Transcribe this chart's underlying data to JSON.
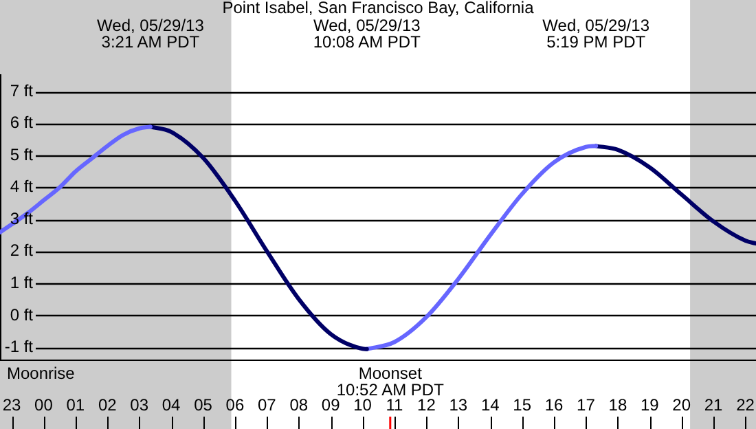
{
  "chart_data": {
    "type": "line",
    "title": "Point Isabel, San Francisco Bay, California",
    "series": [
      {
        "color": "#6666ff",
        "x": [
          "--05-28T22:38",
          "--05-28T23:30",
          "--05-29T00:00",
          "--05-29T00:30",
          "--05-29T01:00",
          "--05-29T01:30",
          "--05-29T02:00",
          "--05-29T02:30",
          "--05-29T03:00",
          "--05-29T03:21"
        ],
        "values": [
          2.6,
          3.2,
          3.6,
          4.0,
          4.5,
          4.9,
          5.3,
          5.65,
          5.85,
          5.9
        ]
      },
      {
        "color": "#000066",
        "x": [
          "--05-29T03:21",
          "--05-29T04:00",
          "--05-29T05:00",
          "--05-29T06:00",
          "--05-29T07:00",
          "--05-29T08:00",
          "--05-29T09:00",
          "--05-29T10:00",
          "--05-29T10:08"
        ],
        "values": [
          5.9,
          5.74,
          4.93,
          3.59,
          2.01,
          0.51,
          -0.58,
          -1.04,
          -1.05
        ]
      },
      {
        "color": "#6666ff",
        "x": [
          "--05-29T10:08",
          "--05-29T11:00",
          "--05-29T12:00",
          "--05-29T13:00",
          "--05-29T14:00",
          "--05-29T15:00",
          "--05-29T16:00",
          "--05-29T17:00",
          "--05-29T17:19"
        ],
        "values": [
          -1.05,
          -0.83,
          -0.05,
          1.14,
          2.51,
          3.8,
          4.79,
          5.27,
          5.3
        ]
      },
      {
        "color": "#000066",
        "x": [
          "--05-29T17:19",
          "--05-29T18:00",
          "--05-29T19:00",
          "--05-29T20:00",
          "--05-29T21:00",
          "--05-29T22:00",
          "--05-29T22:20"
        ],
        "values": [
          5.3,
          5.18,
          4.63,
          3.78,
          2.94,
          2.34,
          2.25
        ]
      }
    ],
    "xlim": [
      "--05-28T22:38",
      "--05-29T22:20"
    ],
    "xticks": [
      {
        "value": "--05-28T23:00",
        "label": "23"
      },
      {
        "value": "--05-29T00:00",
        "label": "00"
      },
      {
        "value": "--05-29T01:00",
        "label": "01"
      },
      {
        "value": "--05-29T02:00",
        "label": "02"
      },
      {
        "value": "--05-29T03:00",
        "label": "03"
      },
      {
        "value": "--05-29T04:00",
        "label": "04"
      },
      {
        "value": "--05-29T05:00",
        "label": "05"
      },
      {
        "value": "--05-29T06:00",
        "label": "06"
      },
      {
        "value": "--05-29T07:00",
        "label": "07"
      },
      {
        "value": "--05-29T08:00",
        "label": "08"
      },
      {
        "value": "--05-29T09:00",
        "label": "09"
      },
      {
        "value": "--05-29T10:00",
        "label": "10"
      },
      {
        "value": "--05-29T11:00",
        "label": "11"
      },
      {
        "value": "--05-29T12:00",
        "label": "12"
      },
      {
        "value": "--05-29T13:00",
        "label": "13"
      },
      {
        "value": "--05-29T14:00",
        "label": "14"
      },
      {
        "value": "--05-29T15:00",
        "label": "15"
      },
      {
        "value": "--05-29T16:00",
        "label": "16"
      },
      {
        "value": "--05-29T17:00",
        "label": "17"
      },
      {
        "value": "--05-29T18:00",
        "label": "18"
      },
      {
        "value": "--05-29T19:00",
        "label": "19"
      },
      {
        "value": "--05-29T20:00",
        "label": "20"
      },
      {
        "value": "--05-29T21:00",
        "label": "21"
      },
      {
        "value": "--05-29T22:00",
        "label": "22"
      }
    ],
    "ylim": [
      -1.4,
      7.5
    ],
    "yticks": [
      {
        "value": -1,
        "label": "-1 ft"
      },
      {
        "value": 0,
        "label": "0 ft"
      },
      {
        "value": 1,
        "label": "1 ft"
      },
      {
        "value": 2,
        "label": "2 ft"
      },
      {
        "value": 3,
        "label": "3 ft"
      },
      {
        "value": 4,
        "label": "4 ft"
      },
      {
        "value": 5,
        "label": "5 ft"
      },
      {
        "value": 6,
        "label": "6 ft"
      },
      {
        "value": 7,
        "label": "7 ft"
      }
    ],
    "grid": "y",
    "legend": false,
    "marker": "none",
    "line_style": "solid",
    "bands": [
      {
        "axis": "x",
        "from": "--05-28T22:38",
        "to": "--05-29T05:53",
        "color": "#cccccc"
      },
      {
        "axis": "x",
        "from": "--05-29T20:16",
        "to": "--05-29T22:20",
        "color": "#cccccc"
      }
    ],
    "ref_lines": [
      {
        "axis": "x",
        "value": "--05-29T10:52",
        "label": "Moonset\n10:52 AM PDT",
        "color": "#ff0000"
      }
    ],
    "annotations": [
      "Wed, 05/29/13\n3:21 AM PDT",
      "Wed, 05/29/13\n10:08 AM PDT",
      "Wed, 05/29/13\n5:19 PM PDT",
      "Moonrise"
    ]
  }
}
